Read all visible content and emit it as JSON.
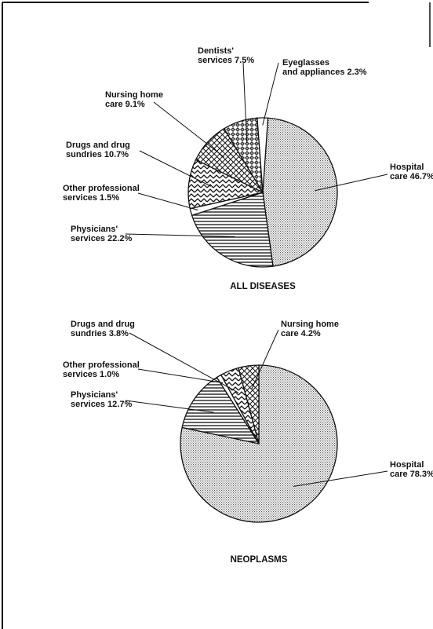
{
  "chart_data": [
    {
      "type": "pie",
      "title": "ALL DISEASES",
      "categories": [
        "Hospital care",
        "Physicians' services",
        "Other professional services",
        "Drugs and drug sundries",
        "Nursing home care",
        "Dentists' services",
        "Eyeglasses and appliances"
      ],
      "values": [
        46.7,
        22.2,
        1.5,
        10.7,
        9.1,
        7.5,
        2.3
      ],
      "value_labels": [
        "46.7%",
        "22.2%",
        "1.5%",
        "10.7%",
        "9.1%",
        "7.5%",
        "2.3%"
      ]
    },
    {
      "type": "pie",
      "title": "NEOPLASMS",
      "categories": [
        "Hospital care",
        "Physicians' services",
        "Other professional services",
        "Drugs and drug sundries",
        "Nursing home care"
      ],
      "values": [
        78.3,
        12.7,
        1.0,
        3.8,
        4.2
      ],
      "value_labels": [
        "78.3%",
        "12.7%",
        "1.0%",
        "3.8%",
        "4.2%"
      ]
    }
  ]
}
